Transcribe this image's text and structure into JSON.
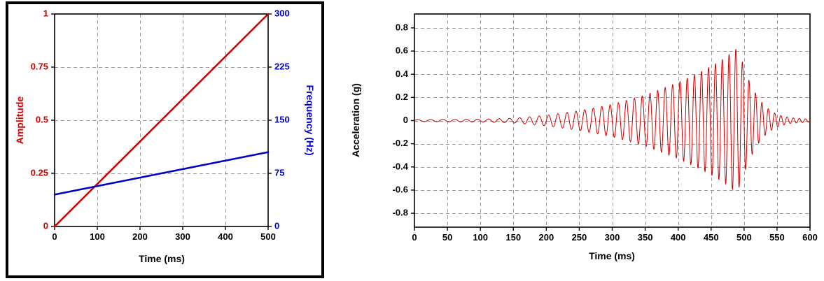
{
  "page": {
    "background": "#ffffff"
  },
  "chart_data": [
    {
      "id": "chirp-definition",
      "type": "line",
      "grid": {
        "color": "#9a9a9a",
        "dash": [
          5,
          4
        ],
        "on": true
      },
      "x_axis": {
        "label": "Time (ms)",
        "min": 0,
        "max": 500,
        "ticks": [
          0,
          100,
          200,
          300,
          400,
          500
        ]
      },
      "left_axis": {
        "label": "Amplitude",
        "color": "#cc0000",
        "min": 0,
        "max": 1,
        "tick_values": [
          0,
          0.25,
          0.5,
          0.75,
          1
        ],
        "ticks": [
          "0",
          "0.25",
          "0.5",
          "0.75",
          "1"
        ]
      },
      "right_axis": {
        "label": "Frequency (Hz)",
        "color": "#0000cc",
        "min": 0,
        "max": 300,
        "tick_values": [
          0,
          75,
          150,
          225,
          300
        ],
        "ticks": [
          "0",
          "75",
          "150",
          "225",
          "300"
        ]
      },
      "series": [
        {
          "name": "amplitude-ramp",
          "axis": "left",
          "color": "#cc0000",
          "width": 2.6,
          "points": [
            [
              0,
              0
            ],
            [
              500,
              1
            ]
          ]
        },
        {
          "name": "frequency-ramp",
          "axis": "right",
          "color": "#0000cc",
          "width": 2.6,
          "points": [
            [
              0,
              45
            ],
            [
              500,
              105
            ]
          ]
        }
      ]
    },
    {
      "id": "chirp-waveform",
      "type": "line",
      "grid": {
        "color": "#9a9a9a",
        "dash": [
          5,
          4
        ],
        "on": true
      },
      "x_axis": {
        "label": "Time (ms)",
        "min": 0,
        "max": 600,
        "ticks": [
          0,
          50,
          100,
          150,
          200,
          250,
          300,
          350,
          400,
          450,
          500,
          550,
          600
        ]
      },
      "y_axis": {
        "label": "Acceleration (g)",
        "color": "#000000",
        "min": -0.92,
        "max": 0.92,
        "tick_values": [
          -0.8,
          -0.6,
          -0.4,
          -0.2,
          0,
          0.2,
          0.4,
          0.6,
          0.8
        ],
        "ticks": [
          "-0.8",
          "-0.6",
          "-0.4",
          "-0.2",
          "0",
          "0.2",
          "0.4",
          "0.6",
          "0.8"
        ]
      },
      "signal": {
        "name": "chirp-acceleration",
        "color": "#cc0000",
        "width": 1,
        "freq_hz": {
          "start": 50,
          "end": 110
        },
        "sample_step_ms": 0.4,
        "envelope_keypoints_g": [
          [
            0,
            0.008
          ],
          [
            100,
            0.012
          ],
          [
            150,
            0.02
          ],
          [
            200,
            0.045
          ],
          [
            250,
            0.085
          ],
          [
            300,
            0.14
          ],
          [
            350,
            0.22
          ],
          [
            400,
            0.33
          ],
          [
            430,
            0.41
          ],
          [
            450,
            0.47
          ],
          [
            470,
            0.54
          ],
          [
            488,
            0.62
          ],
          [
            495,
            0.55
          ],
          [
            505,
            0.38
          ],
          [
            515,
            0.26
          ],
          [
            525,
            0.17
          ],
          [
            535,
            0.11
          ],
          [
            545,
            0.07
          ],
          [
            555,
            0.045
          ],
          [
            570,
            0.025
          ],
          [
            600,
            0.012
          ]
        ]
      }
    }
  ]
}
